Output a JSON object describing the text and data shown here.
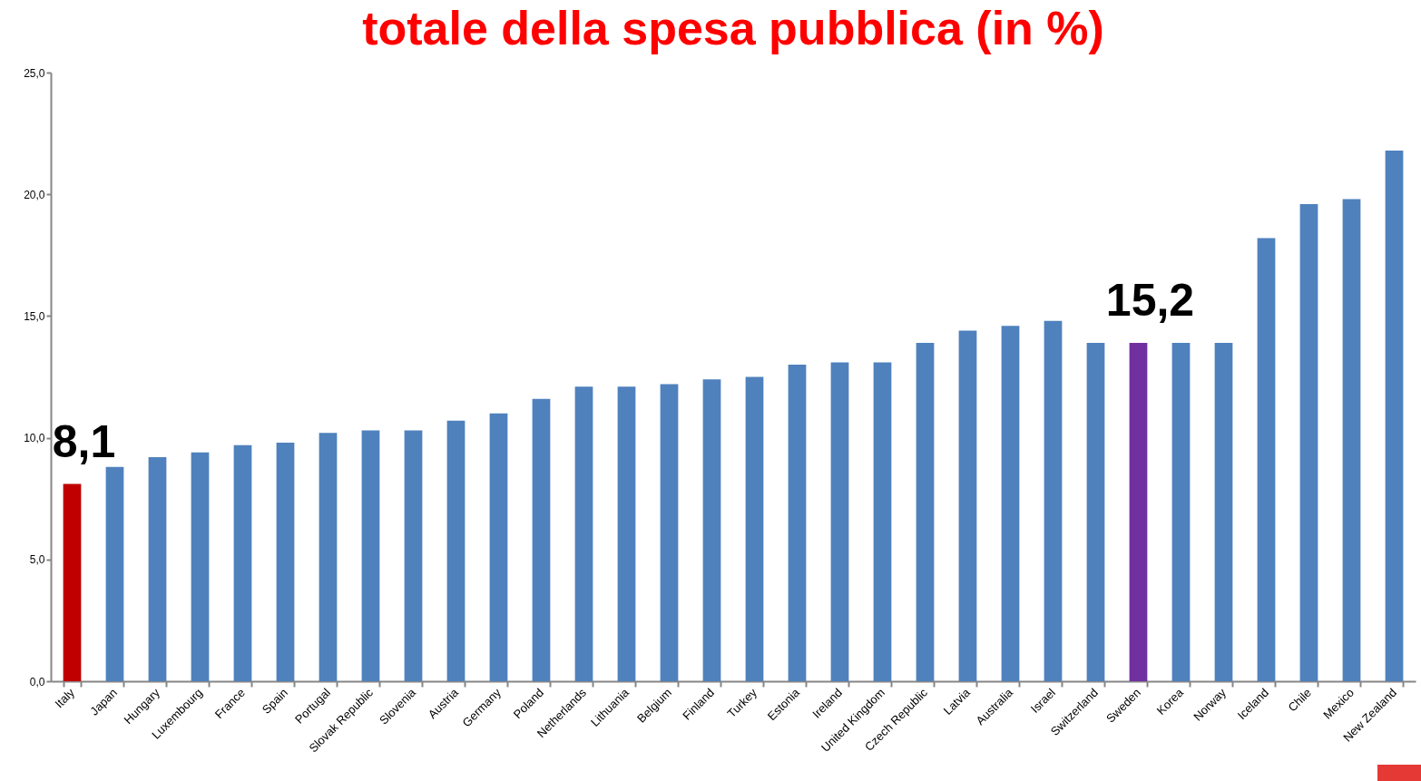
{
  "chart_data": {
    "type": "bar",
    "title": "totale della spesa pubblica (in %)",
    "categories": [
      "Italy",
      "Japan",
      "Hungary",
      "Luxembourg",
      "France",
      "Spain",
      "Portugal",
      "Slovak Republic",
      "Slovenia",
      "Austria",
      "Germany",
      "Poland",
      "Netherlands",
      "Lithuania",
      "Belgium",
      "Finland",
      "Turkey",
      "Estonia",
      "Ireland",
      "United Kingdom",
      "Czech Republic",
      "Latvia",
      "Australia",
      "Israel",
      "Switzerland",
      "Sweden",
      "Korea",
      "Norway",
      "Iceland",
      "Chile",
      "Mexico",
      "New Zealand"
    ],
    "values": [
      8.1,
      8.8,
      9.2,
      9.4,
      9.7,
      9.8,
      10.2,
      10.3,
      10.3,
      10.7,
      11.0,
      11.6,
      12.1,
      12.1,
      12.2,
      12.4,
      12.5,
      13.0,
      13.1,
      13.1,
      13.9,
      14.4,
      14.6,
      14.8,
      13.9,
      13.9,
      13.9,
      13.9,
      18.2,
      19.6,
      19.8,
      21.8
    ],
    "colors": [
      "#c00000",
      "#4f81bd",
      "#4f81bd",
      "#4f81bd",
      "#4f81bd",
      "#4f81bd",
      "#4f81bd",
      "#4f81bd",
      "#4f81bd",
      "#4f81bd",
      "#4f81bd",
      "#4f81bd",
      "#4f81bd",
      "#4f81bd",
      "#4f81bd",
      "#4f81bd",
      "#4f81bd",
      "#4f81bd",
      "#4f81bd",
      "#4f81bd",
      "#4f81bd",
      "#4f81bd",
      "#4f81bd",
      "#4f81bd",
      "#4f81bd",
      "#7030a0",
      "#4f81bd",
      "#4f81bd",
      "#4f81bd",
      "#4f81bd",
      "#4f81bd",
      "#4f81bd"
    ],
    "ylim": [
      0,
      25
    ],
    "yticks": [
      {
        "value": 0,
        "label": "0,0"
      },
      {
        "value": 5,
        "label": "5,0"
      },
      {
        "value": 10,
        "label": "10,0"
      },
      {
        "value": 15,
        "label": "15,0"
      },
      {
        "value": 20,
        "label": "20,0"
      },
      {
        "value": 25,
        "label": "25,0"
      }
    ],
    "annotations": [
      {
        "text": "8,1",
        "x": "Italy",
        "y": 8.1
      },
      {
        "text": "15,2",
        "x": "Sweden",
        "y": 13.9
      }
    ]
  }
}
